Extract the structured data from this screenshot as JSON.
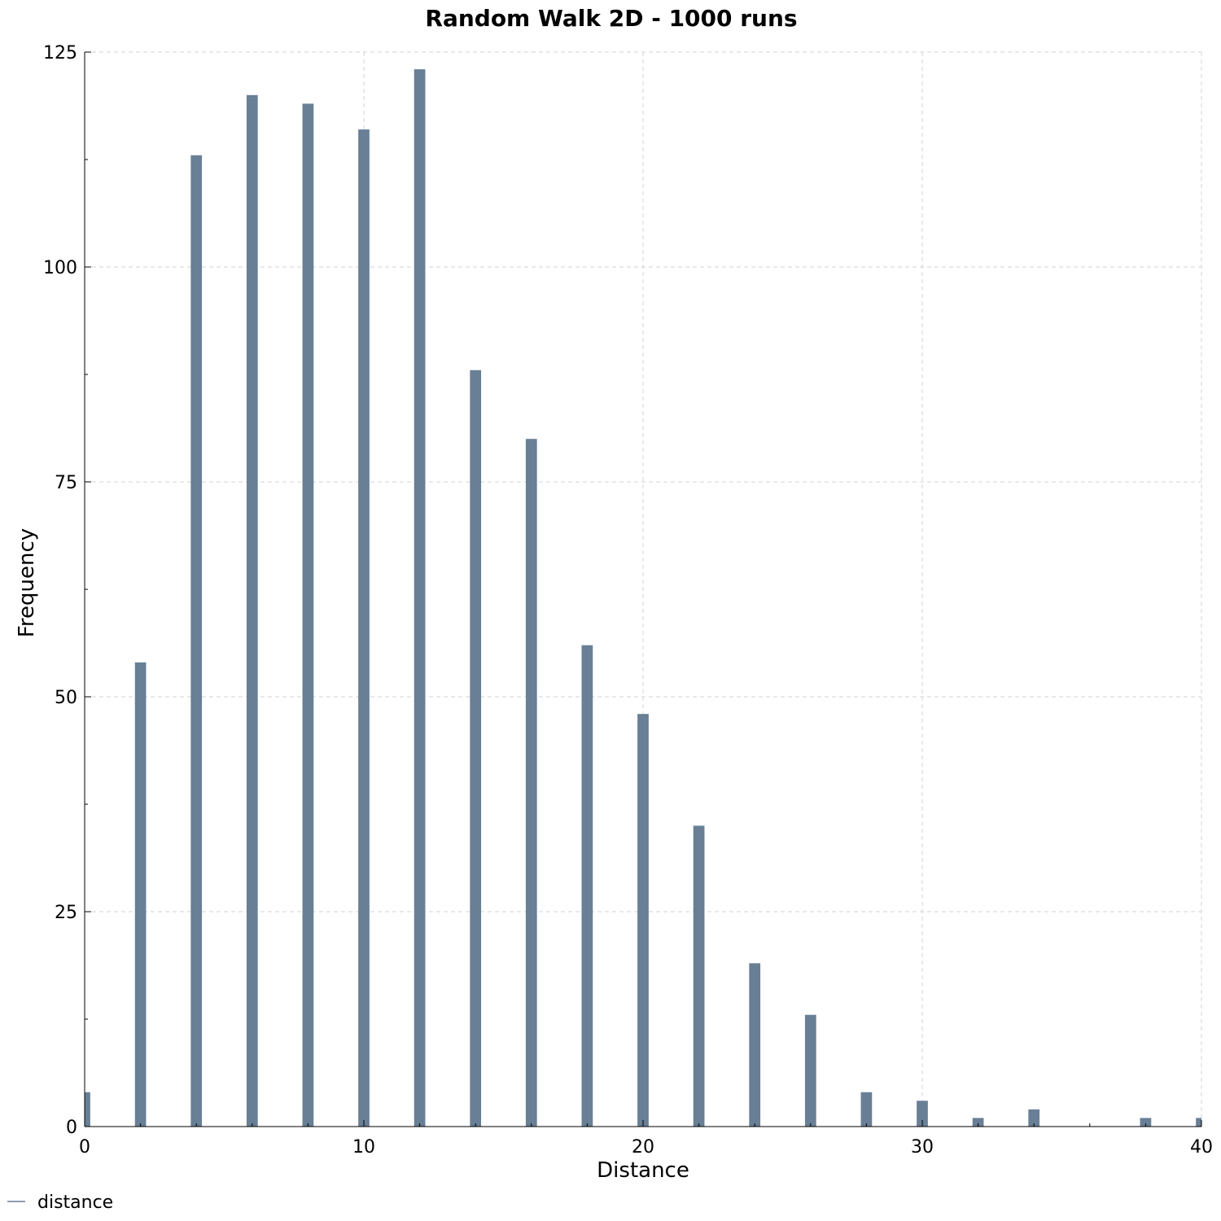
{
  "chart_data": {
    "type": "bar",
    "title": "Random Walk 2D - 1000 runs",
    "xlabel": "Distance",
    "ylabel": "Frequency",
    "xlim": [
      0,
      40
    ],
    "ylim": [
      0,
      125
    ],
    "x_ticks": [
      0,
      10,
      20,
      30,
      40
    ],
    "y_ticks": [
      0,
      25,
      50,
      75,
      100,
      125
    ],
    "grid": true,
    "legend_position": "bottom-left",
    "bar_width": 0.4,
    "bar_color": "#687f96",
    "series": [
      {
        "name": "distance",
        "x": [
          0,
          2,
          4,
          6,
          8,
          10,
          12,
          14,
          16,
          18,
          20,
          22,
          24,
          26,
          28,
          30,
          32,
          34,
          38,
          40
        ],
        "values": [
          4,
          54,
          113,
          120,
          119,
          116,
          123,
          88,
          80,
          56,
          48,
          35,
          19,
          13,
          4,
          3,
          1,
          2,
          1,
          1
        ]
      }
    ]
  }
}
